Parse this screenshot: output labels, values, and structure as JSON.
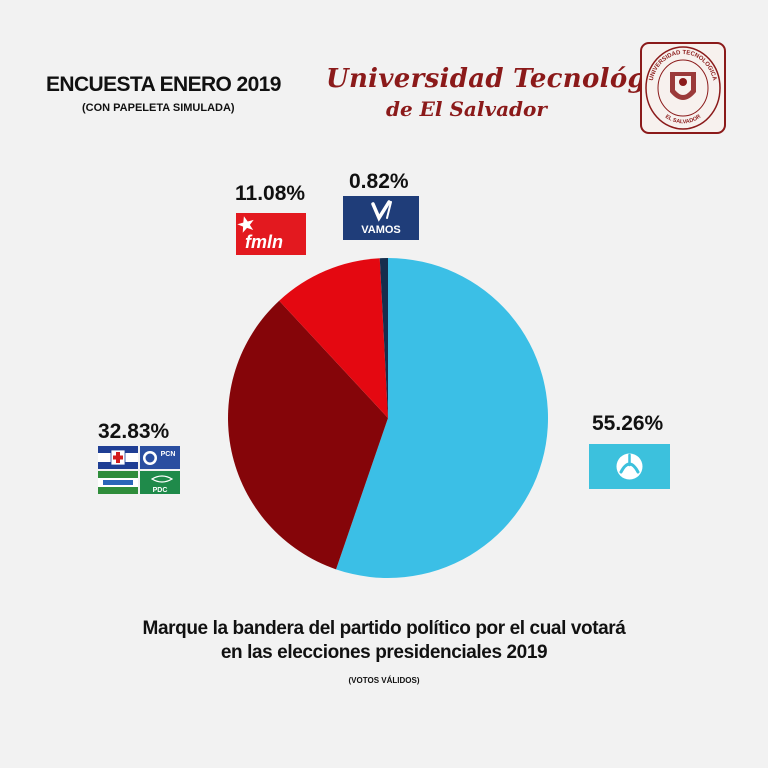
{
  "header": {
    "title": "ENCUESTA ENERO 2019",
    "subtitle": "(CON PAPELETA SIMULADA)"
  },
  "university": {
    "line1": "Universidad Tecnológica",
    "line2": "de El Salvador",
    "seal_top_text": "UNIVERSIDAD TECNOLOGICA",
    "seal_bottom_text": "EL SALVADOR",
    "brand_color": "#8b1a1a"
  },
  "flags": {
    "fmln_text": "fmln",
    "vamos_text": "VAMOS",
    "pcn_text": "PCN",
    "pdc_text": "PDC"
  },
  "chart_data": {
    "type": "pie",
    "title": "",
    "start": "top, clockwise",
    "slices": [
      {
        "label": "55.26%",
        "value": 55.26,
        "color": "#3bbfe6",
        "party_flag": "nuevas-ideas-flag"
      },
      {
        "label": "32.83%",
        "value": 32.83,
        "color": "#850509",
        "party_flag": "coalition-flags"
      },
      {
        "label": "11.08%",
        "value": 11.08,
        "color": "#e40811",
        "party_flag": "fmln-flag"
      },
      {
        "label": "0.82%",
        "value": 0.82,
        "color": "#162d4d",
        "party_flag": "vamos-flag"
      }
    ]
  },
  "footer": {
    "question_line1": "Marque la bandera del partido político por el cual votará",
    "question_line2": "en las elecciones presidenciales 2019",
    "note": "(VOTOS VÁLIDOS)"
  }
}
